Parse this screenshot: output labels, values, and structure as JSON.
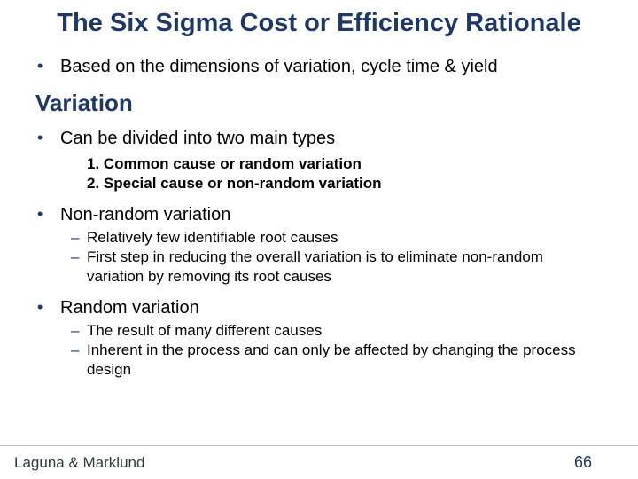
{
  "colors": {
    "heading": "#1f3864",
    "body": "#000000",
    "footer_text": "#33393f",
    "footer_border": "#bfbfbf",
    "background": "#ffffff"
  },
  "title_font_size": 29,
  "body_font_size": 20,
  "sub_font_size": 17,
  "title": "The Six Sigma Cost or Efficiency Rationale",
  "top_bullet": "Based on the dimensions of variation, cycle time & yield",
  "subheading": "Variation",
  "b1": {
    "text": "Can be divided into two main types",
    "numbered": [
      "1. Common cause or random variation",
      "2. Special cause or non-random variation"
    ]
  },
  "b2": {
    "text": "Non-random variation",
    "dashes": [
      "Relatively few identifiable root causes",
      "First step in reducing the overall variation is to eliminate non-random variation by removing its root causes"
    ]
  },
  "b3": {
    "text": "Random variation",
    "dashes": [
      "The result of many different causes",
      "Inherent in the process and can only be affected by changing the process design"
    ]
  },
  "footer": {
    "author": "Laguna & Marklund",
    "page": "66"
  }
}
